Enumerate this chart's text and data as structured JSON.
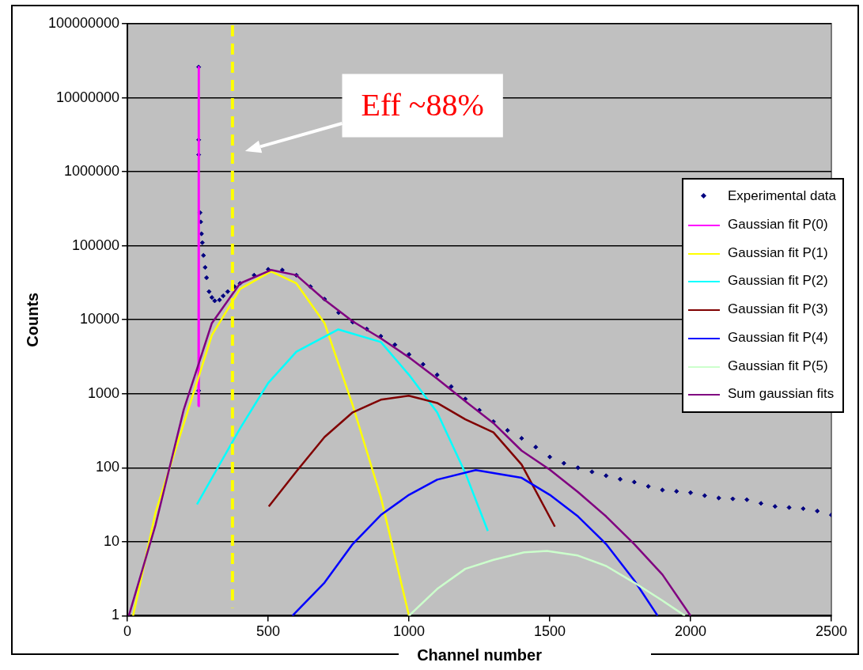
{
  "chart_data": {
    "type": "line",
    "xlabel": "Channel number",
    "ylabel": "Counts",
    "xlim": [
      0,
      2500
    ],
    "xticks": [
      0,
      500,
      1000,
      1500,
      2000,
      2500
    ],
    "ylim": [
      1,
      100000000
    ],
    "yticks": [
      1,
      10,
      100,
      1000,
      10000,
      100000,
      1000000,
      10000000,
      100000000
    ],
    "log": "y",
    "grid": "y",
    "legend": "right",
    "series": [
      {
        "name": "Experimental data",
        "type": "scatter",
        "marker": "diamond",
        "color": "#000080",
        "x": [
          253,
          253,
          253,
          253,
          258,
          260,
          263,
          266,
          270,
          276,
          281,
          290,
          300,
          310,
          327,
          340,
          356,
          380,
          400,
          450,
          500,
          550,
          600,
          650,
          700,
          750,
          800,
          850,
          900,
          950,
          1000,
          1050,
          1100,
          1150,
          1200,
          1250,
          1300,
          1350,
          1400,
          1450,
          1500,
          1550,
          1600,
          1650,
          1700,
          1750,
          1800,
          1850,
          1900,
          1950,
          2000,
          2050,
          2100,
          2150,
          2200,
          2250,
          2300,
          2350,
          2400,
          2450,
          2500
        ],
        "values": [
          26000000,
          2700000,
          1700000,
          1100,
          280000,
          210000,
          145000,
          110000,
          74000,
          51000,
          37000,
          24000,
          20000,
          18000,
          18500,
          21000,
          24000,
          28000,
          31000,
          40000,
          48000,
          47000,
          40000,
          28000,
          19000,
          12500,
          9300,
          7500,
          6000,
          4600,
          3400,
          2500,
          1800,
          1250,
          850,
          600,
          420,
          320,
          250,
          190,
          140,
          115,
          100,
          88,
          78,
          70,
          64,
          56,
          50,
          48,
          46,
          42,
          39,
          38,
          37,
          33,
          30,
          29,
          28,
          26,
          23
        ]
      },
      {
        "name": "Gaussian fit P(0)",
        "color": "#ff00ff",
        "x": [
          252,
          253,
          254
        ],
        "values": [
          680,
          26000000,
          680
        ]
      },
      {
        "name": "Gaussian fit P(1)",
        "color": "#ffff00",
        "x": [
          20,
          100,
          200,
          300,
          400,
          510,
          600,
          700,
          800,
          900,
          1000
        ],
        "values": [
          1,
          25,
          null,
          6200,
          26000,
          45000,
          31000,
          9000,
          700,
          40,
          1
        ]
      },
      {
        "name": "Gaussian fit P(2)",
        "color": "#00ffff",
        "x": [
          247,
          400,
          500,
          600,
          749,
          900,
          1000,
          1100,
          1200,
          1280
        ],
        "values": [
          32,
          340,
          1400,
          3700,
          7400,
          5000,
          1800,
          560,
          85,
          14
        ]
      },
      {
        "name": "Gaussian fit P(3)",
        "color": "#800000",
        "x": [
          502,
          600,
          700,
          800,
          900,
          999,
          1100,
          1200,
          1300,
          1400,
          1518
        ],
        "values": [
          30,
          89,
          260,
          560,
          830,
          940,
          750,
          450,
          300,
          110,
          16
        ]
      },
      {
        "name": "Gaussian fit P(4)",
        "color": "#0000ff",
        "x": [
          586,
          700,
          800,
          900,
          1000,
          1100,
          1237,
          1400,
          1500,
          1600,
          1700,
          1800,
          1883
        ],
        "values": [
          1,
          2.8,
          9.3,
          23,
          43,
          69,
          93,
          73,
          43,
          22,
          9.3,
          3,
          1
        ]
      },
      {
        "name": "Gaussian fit P(5)",
        "color": "#ccffcc",
        "x": [
          1000,
          1100,
          1200,
          1300,
          1409,
          1490,
          1600,
          1700,
          1800,
          1900,
          1980
        ],
        "values": [
          1,
          2.3,
          4.3,
          5.7,
          7.2,
          7.5,
          6.5,
          4.7,
          2.8,
          1.6,
          1
        ]
      },
      {
        "name": "Sum gaussian fits",
        "color": "#800080",
        "x": [
          5,
          100,
          200,
          300,
          400,
          510,
          600,
          700,
          800,
          900,
          1000,
          1100,
          1200,
          1300,
          1400,
          1500,
          1600,
          1700,
          1800,
          1900,
          2000
        ],
        "values": [
          1,
          17,
          610,
          9000,
          31000,
          47000,
          40000,
          18600,
          9500,
          5600,
          3100,
          1600,
          790,
          400,
          170,
          94,
          47,
          22,
          9.3,
          3.6,
          1
        ]
      }
    ],
    "ref_lines": [
      {
        "axis": "x",
        "value": 373,
        "color": "#ffff00",
        "line_style": "dashed"
      }
    ],
    "annotations": [
      "Eff ~88%"
    ]
  }
}
